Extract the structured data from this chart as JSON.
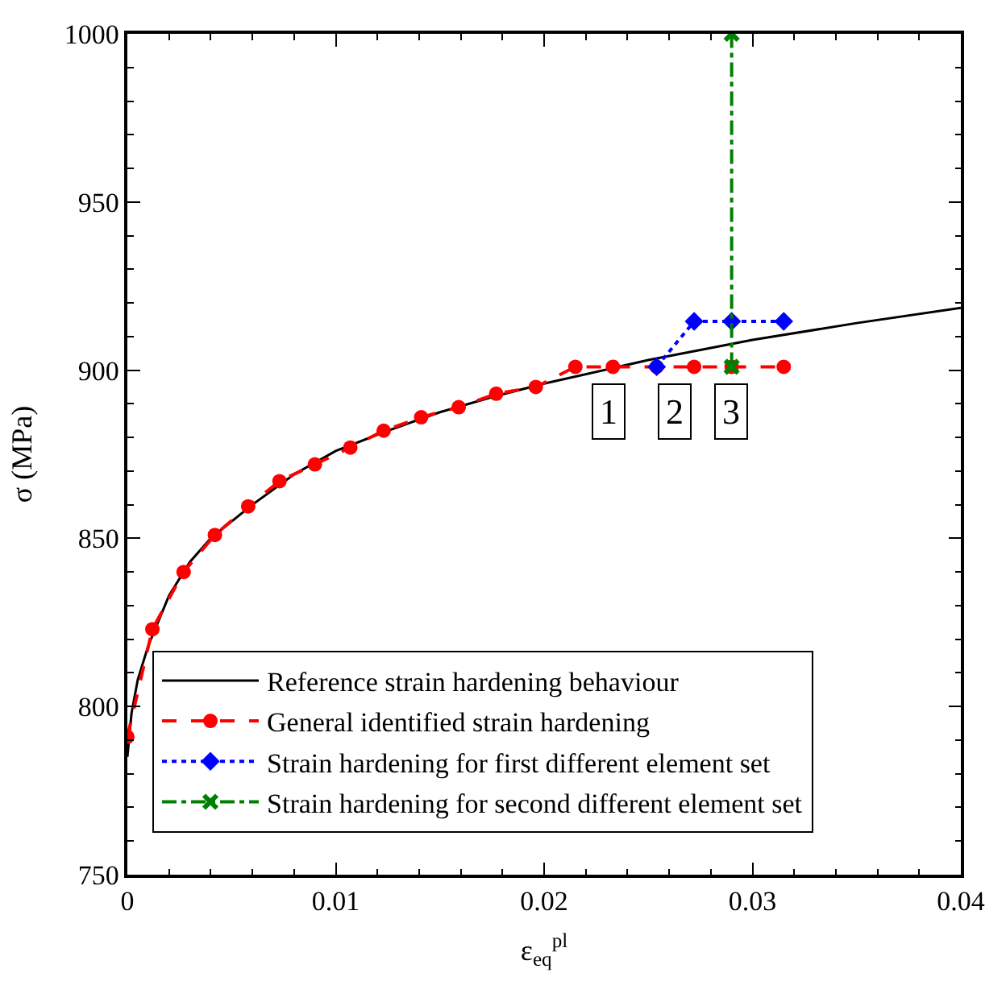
{
  "chart_data": {
    "type": "line",
    "xlabel": "ε$_{eq}$$^{pl}$",
    "ylabel": "σ (MPa)",
    "xlim": [
      0,
      0.04
    ],
    "xticks": [
      0,
      0.01,
      0.02,
      0.03,
      0.04
    ],
    "ylim": [
      750,
      1000
    ],
    "yticks": [
      750,
      800,
      850,
      900,
      950,
      1000
    ],
    "legend": "bottom",
    "series": [
      {
        "name": "Reference strain hardening behaviour",
        "color": "#000000",
        "marker": "none",
        "line_style": "solid",
        "x": [
          0,
          0.0002,
          0.0005,
          0.001,
          0.002,
          0.003,
          0.004,
          0.006,
          0.008,
          0.01,
          0.0125,
          0.015,
          0.0175,
          0.02,
          0.025,
          0.03,
          0.035,
          0.04
        ],
        "values": [
          785,
          798,
          808,
          818,
          833,
          843,
          850,
          860,
          869,
          876,
          882,
          887.5,
          892,
          896,
          903,
          909,
          914,
          918.5
        ]
      },
      {
        "name": "General identified strain hardening",
        "color": "#ff0000",
        "marker": "circle",
        "line_style": "dashed",
        "x": [
          0,
          0.0012,
          0.0027,
          0.0042,
          0.0058,
          0.0073,
          0.009,
          0.0107,
          0.0123,
          0.0141,
          0.0159,
          0.0177,
          0.0196,
          0.0215,
          0.0233,
          0.0254,
          0.0272,
          0.029,
          0.0315
        ],
        "values": [
          791,
          823,
          840,
          851,
          859.5,
          867,
          872,
          877,
          882,
          886,
          889,
          893,
          895,
          901,
          901,
          901,
          901,
          901,
          901
        ]
      },
      {
        "name": "Strain hardening for first different element set",
        "color": "#0000ff",
        "marker": "diamond",
        "line_style": "dotted",
        "x": [
          0.0254,
          0.0272,
          0.029,
          0.0315
        ],
        "values": [
          901,
          914.5,
          914.5,
          914.5
        ]
      },
      {
        "name": "Strain hardening for second different element set",
        "color": "#008000",
        "marker": "cross",
        "line_style": "dashdot",
        "x": [
          0.029,
          0.029
        ],
        "values": [
          901,
          1000
        ]
      }
    ],
    "annotations": [
      {
        "text": "1",
        "x": 0.0231,
        "y": 887.5
      },
      {
        "text": "2",
        "x": 0.0263,
        "y": 887.5
      },
      {
        "text": "3",
        "x": 0.029,
        "y": 887.5
      }
    ]
  }
}
